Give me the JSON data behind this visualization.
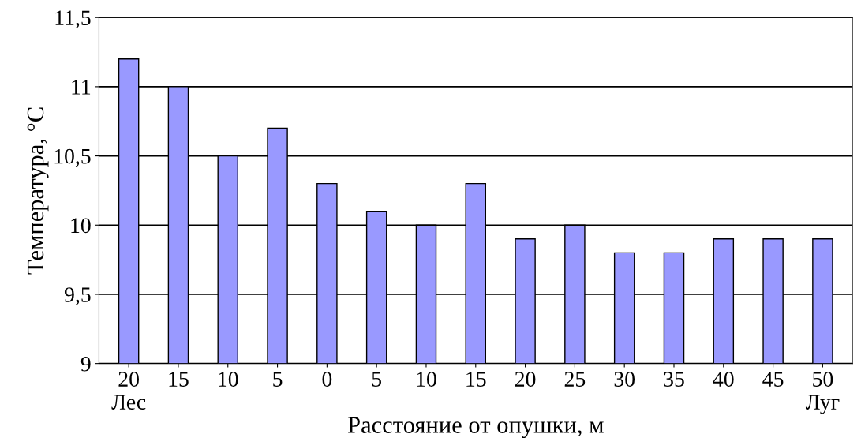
{
  "chart_data": {
    "type": "bar",
    "categories": [
      "20\nЛес",
      "15",
      "10",
      "5",
      "0",
      "5",
      "10",
      "15",
      "20",
      "25",
      "30",
      "35",
      "40",
      "45",
      "50\nЛуг"
    ],
    "values": [
      11.2,
      11.0,
      10.5,
      10.7,
      10.3,
      10.1,
      10.0,
      10.3,
      9.9,
      10.0,
      9.8,
      9.8,
      9.9,
      9.9,
      9.9
    ],
    "color": "#9999ff",
    "xlabel": "Расстояние от опушки, м",
    "ylabel": "Температура, °C",
    "ylim": [
      9,
      11.5
    ],
    "yticks": [
      9,
      {
        "value": 9.5,
        "label": "9,5"
      },
      10,
      {
        "value": 10.5,
        "label": "10,5"
      },
      11,
      {
        "value": 11.5,
        "label": "11,5"
      }
    ],
    "grid": "y"
  }
}
